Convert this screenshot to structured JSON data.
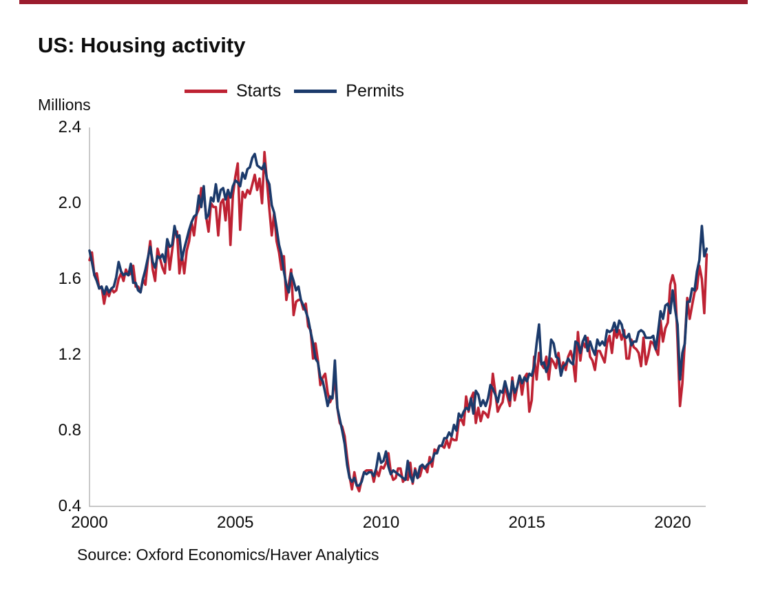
{
  "page": {
    "background_color": "#ffffff",
    "top_bar_color": "#9b1c2e"
  },
  "title": "US: Housing activity",
  "unit_label": "Millions",
  "source": "Source: Oxford Economics/Haver Analytics",
  "legend": {
    "starts_label": "Starts",
    "permits_label": "Permits",
    "starts_color": "#be2233",
    "permits_color": "#1b3a6b"
  },
  "axis": {
    "line_color": "#b3b3b3"
  },
  "chart_data": {
    "type": "line",
    "title": "US: Housing activity",
    "xlabel": "",
    "ylabel": "Millions",
    "x_start_year": 2000,
    "x_frequency": "monthly",
    "x_end": "2021-03",
    "xlim": [
      2000,
      2021.2
    ],
    "ylim": [
      0.4,
      2.4
    ],
    "y_ticks": [
      0.4,
      0.8,
      1.2,
      1.6,
      2.0,
      2.4
    ],
    "x_ticks": [
      2000,
      2005,
      2010,
      2015,
      2020
    ],
    "grid": false,
    "legend_position": "top",
    "series": [
      {
        "name": "Starts",
        "color": "#be2233",
        "values": [
          1.7,
          1.74,
          1.62,
          1.63,
          1.55,
          1.56,
          1.47,
          1.54,
          1.51,
          1.55,
          1.53,
          1.54,
          1.6,
          1.63,
          1.59,
          1.65,
          1.62,
          1.63,
          1.67,
          1.56,
          1.56,
          1.53,
          1.6,
          1.57,
          1.7,
          1.8,
          1.65,
          1.59,
          1.76,
          1.71,
          1.66,
          1.63,
          1.8,
          1.65,
          1.75,
          1.85,
          1.85,
          1.63,
          1.73,
          1.63,
          1.75,
          1.8,
          1.9,
          1.83,
          1.94,
          1.97,
          2.08,
          2.06,
          1.93,
          1.85,
          2.0,
          1.98,
          1.98,
          1.83,
          2.0,
          2.02,
          1.91,
          2.07,
          1.78,
          2.04,
          2.14,
          2.21,
          1.86,
          2.06,
          2.03,
          2.07,
          2.05,
          2.1,
          2.15,
          2.07,
          2.13,
          2.0,
          2.27,
          2.12,
          1.97,
          1.83,
          1.95,
          1.8,
          1.74,
          1.65,
          1.72,
          1.49,
          1.57,
          1.65,
          1.41,
          1.48,
          1.49,
          1.49,
          1.44,
          1.47,
          1.35,
          1.33,
          1.18,
          1.26,
          1.17,
          1.04,
          1.08,
          1.1,
          1.0,
          0.95,
          0.98,
          1.08,
          0.92,
          0.84,
          0.82,
          0.77,
          0.66,
          0.56,
          0.49,
          0.58,
          0.51,
          0.48,
          0.54,
          0.58,
          0.59,
          0.59,
          0.59,
          0.53,
          0.59,
          0.56,
          0.61,
          0.6,
          0.63,
          0.68,
          0.58,
          0.54,
          0.55,
          0.6,
          0.6,
          0.53,
          0.55,
          0.54,
          0.63,
          0.52,
          0.6,
          0.55,
          0.56,
          0.61,
          0.61,
          0.58,
          0.66,
          0.61,
          0.7,
          0.69,
          0.72,
          0.72,
          0.71,
          0.75,
          0.71,
          0.76,
          0.75,
          0.75,
          0.85,
          0.86,
          0.83,
          0.98,
          0.9,
          0.97,
          1.0,
          0.84,
          0.92,
          0.85,
          0.9,
          0.89,
          0.87,
          0.94,
          1.1,
          1.0,
          0.9,
          0.93,
          0.95,
          1.04,
          0.98,
          0.93,
          1.08,
          0.96,
          1.03,
          1.09,
          0.99,
          1.08,
          1.1,
          0.9,
          0.96,
          1.19,
          1.07,
          1.21,
          1.15,
          1.13,
          1.19,
          1.07,
          1.18,
          1.16,
          1.13,
          1.21,
          1.11,
          1.16,
          1.12,
          1.19,
          1.22,
          1.17,
          1.06,
          1.32,
          1.17,
          1.27,
          1.24,
          1.29,
          1.19,
          1.17,
          1.12,
          1.22,
          1.22,
          1.19,
          1.16,
          1.26,
          1.3,
          1.21,
          1.33,
          1.29,
          1.33,
          1.28,
          1.33,
          1.18,
          1.18,
          1.28,
          1.24,
          1.23,
          1.21,
          1.14,
          1.29,
          1.15,
          1.2,
          1.27,
          1.26,
          1.23,
          1.2,
          1.38,
          1.27,
          1.34,
          1.37,
          1.57,
          1.62,
          1.57,
          1.27,
          0.93,
          1.05,
          1.27,
          1.5,
          1.39,
          1.46,
          1.53,
          1.55,
          1.67,
          1.6,
          1.42,
          1.73
        ]
      },
      {
        "name": "Permits",
        "color": "#1b3a6b",
        "values": [
          1.75,
          1.69,
          1.62,
          1.59,
          1.55,
          1.56,
          1.52,
          1.56,
          1.53,
          1.55,
          1.56,
          1.61,
          1.69,
          1.64,
          1.62,
          1.63,
          1.62,
          1.68,
          1.58,
          1.58,
          1.54,
          1.53,
          1.6,
          1.65,
          1.71,
          1.77,
          1.69,
          1.66,
          1.72,
          1.71,
          1.73,
          1.69,
          1.81,
          1.77,
          1.78,
          1.88,
          1.82,
          1.83,
          1.7,
          1.76,
          1.81,
          1.86,
          1.9,
          1.93,
          1.94,
          2.04,
          1.98,
          2.09,
          1.92,
          1.94,
          2.03,
          2.01,
          2.1,
          2.01,
          2.07,
          2.08,
          2.02,
          2.07,
          2.03,
          2.09,
          2.12,
          2.11,
          2.09,
          2.16,
          2.13,
          2.18,
          2.19,
          2.24,
          2.26,
          2.2,
          2.19,
          2.18,
          2.21,
          2.13,
          2.1,
          1.99,
          1.95,
          1.87,
          1.78,
          1.73,
          1.64,
          1.57,
          1.53,
          1.63,
          1.59,
          1.54,
          1.56,
          1.49,
          1.46,
          1.43,
          1.39,
          1.32,
          1.26,
          1.18,
          1.16,
          1.08,
          1.06,
          1.0,
          0.93,
          0.98,
          0.97,
          1.17,
          0.92,
          0.86,
          0.8,
          0.73,
          0.62,
          0.55,
          0.53,
          0.55,
          0.51,
          0.51,
          0.53,
          0.58,
          0.57,
          0.58,
          0.58,
          0.56,
          0.6,
          0.68,
          0.63,
          0.64,
          0.69,
          0.61,
          0.57,
          0.59,
          0.58,
          0.57,
          0.56,
          0.55,
          0.54,
          0.64,
          0.56,
          0.53,
          0.59,
          0.55,
          0.61,
          0.62,
          0.6,
          0.62,
          0.63,
          0.64,
          0.68,
          0.68,
          0.72,
          0.72,
          0.76,
          0.76,
          0.79,
          0.77,
          0.83,
          0.8,
          0.89,
          0.87,
          0.9,
          0.92,
          0.91,
          0.97,
          0.89,
          1.01,
          0.99,
          0.93,
          0.96,
          0.93,
          0.97,
          1.04,
          1.02,
          0.99,
          0.95,
          1.01,
          1.0,
          1.06,
          1.01,
          0.96,
          1.06,
          1.0,
          1.03,
          1.09,
          1.05,
          1.08,
          1.06,
          1.1,
          1.09,
          1.14,
          1.26,
          1.36,
          1.15,
          1.16,
          1.11,
          1.15,
          1.28,
          1.26,
          1.19,
          1.18,
          1.09,
          1.14,
          1.15,
          1.18,
          1.16,
          1.15,
          1.27,
          1.26,
          1.21,
          1.27,
          1.3,
          1.22,
          1.27,
          1.23,
          1.2,
          1.28,
          1.25,
          1.27,
          1.25,
          1.33,
          1.32,
          1.33,
          1.37,
          1.32,
          1.38,
          1.36,
          1.3,
          1.29,
          1.31,
          1.25,
          1.27,
          1.27,
          1.32,
          1.33,
          1.32,
          1.29,
          1.29,
          1.29,
          1.3,
          1.23,
          1.32,
          1.43,
          1.39,
          1.46,
          1.47,
          1.42,
          1.54,
          1.44,
          1.36,
          1.07,
          1.21,
          1.26,
          1.48,
          1.48,
          1.55,
          1.54,
          1.64,
          1.7,
          1.88,
          1.72,
          1.76
        ]
      }
    ]
  }
}
